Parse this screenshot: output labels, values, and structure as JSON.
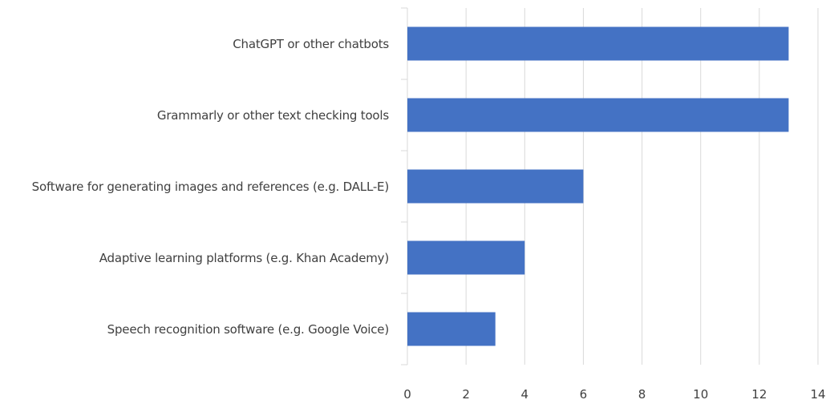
{
  "chart_data": {
    "type": "bar",
    "orientation": "horizontal",
    "categories": [
      "ChatGPT or other chatbots",
      "Grammarly or other text checking tools",
      "Software for generating images and references (e.g. DALL-E)",
      "Adaptive learning platforms (e.g. Khan Academy)",
      "Speech recognition software (e.g. Google Voice)"
    ],
    "values": [
      13,
      13,
      6,
      4,
      3
    ],
    "color": "#4472c4",
    "xlim": [
      0,
      14
    ],
    "xticks": [
      0,
      2,
      4,
      6,
      8,
      10,
      12,
      14
    ],
    "grid": true
  }
}
